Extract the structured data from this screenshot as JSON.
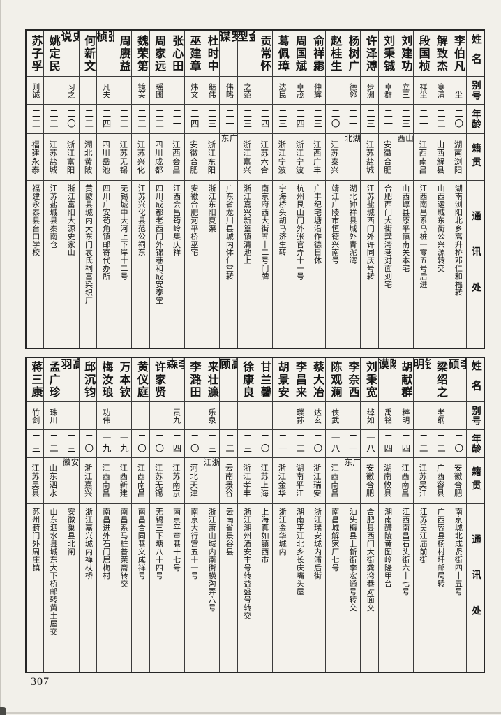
{
  "page": {
    "number": "307"
  },
  "headers": {
    "name": "姓名",
    "alias": "别号",
    "age": "年龄",
    "origin": "籍贯",
    "contact": "通讯处"
  },
  "tables": [
    {
      "people": [
        {
          "name": "李伯凡",
          "alias": "一尘",
          "age": "二〇",
          "origin": "湖南浏阳",
          "contact": "湖南浏阳北乡高升桥邓仁和福转"
        },
        {
          "name": "解致杰",
          "alias": "寒清",
          "age": "二二",
          "origin": "山西解县",
          "contact": "山西运城东街公兴源转交"
        },
        {
          "name": "段国桢",
          "alias": "祥尘",
          "age": "二一",
          "origin": "江西南昌",
          "contact": "江西南昌系马桩一零五号后进"
        },
        {
          "name": "刘建功",
          "alias": "立三",
          "age": "二三",
          "origin": "山西",
          "contact": "山西崞县原平镇南关本宅"
        },
        {
          "name": "刘秉铖",
          "alias": "卓群",
          "age": "二一",
          "origin": "安徽合肥",
          "contact": "合肥西门大街龚湾巷对面刘宅"
        },
        {
          "name": "许泽溥",
          "alias": "步洲",
          "age": "二三",
          "origin": "江苏盐城",
          "contact": "江苏盐城西门外许同庆号转"
        },
        {
          "name": "杨树广",
          "alias": "德邻",
          "age": "二一",
          "origin": "湖北",
          "contact": "湖北钟祥县城外青泥湾"
        },
        {
          "name": "赵桂生",
          "alias": "",
          "age": "二〇",
          "origin": "江苏泰兴",
          "contact": "靖江广陵市恒德兴南号"
        },
        {
          "name": "俞祥霦",
          "alias": "仲辉",
          "age": "二三",
          "origin": "江西广丰",
          "contact": "广丰纪宅塘沿作德日休"
        },
        {
          "name": "周国斌",
          "alias": "卓茂",
          "age": "二四",
          "origin": "浙江宁波",
          "contact": "杭州艮山门外张官弄十一号"
        },
        {
          "name": "葛佩璋",
          "alias": "达民",
          "age": "二三",
          "origin": "浙江宁波",
          "contact": "宁海桥头胡马济生转"
        },
        {
          "name": "贡常怀",
          "alias": "",
          "age": "二四",
          "origin": "江苏六合",
          "contact": "南京府西大街五十二号门牌"
        },
        {
          "name": "金型",
          "alias": "之范",
          "age": "二三",
          "origin": "浙江嘉兴",
          "contact": "浙江嘉兴新篁镇清池上"
        },
        {
          "name": "罗谋",
          "alias": "伟略",
          "age": "二一",
          "origin": "广东",
          "contact": "广东省龙川县城内体仁堂转"
        },
        {
          "name": "杜时中",
          "alias": "继伟",
          "age": "二三",
          "origin": "浙江东阳",
          "contact": "浙江东阳夏渠"
        },
        {
          "name": "巫建章",
          "alias": "炜文",
          "age": "二四",
          "origin": "安徽合肥",
          "contact": "安徽合肥河平桥巫宅"
        },
        {
          "name": "张心田",
          "alias": "",
          "age": "二一",
          "origin": "江西会昌",
          "contact": "江西会昌筠岭集庆祥"
        },
        {
          "name": "周家远",
          "alias": "瑶圃",
          "age": "二二",
          "origin": "四川成都",
          "contact": "四川成都老西门外锦巷和成安泰堂"
        },
        {
          "name": "魏荣第",
          "alias": "镜芙",
          "age": "二二",
          "origin": "江苏兴化",
          "contact": "江苏兴化县范公祠东"
        },
        {
          "name": "周赓益",
          "alias": "",
          "age": "二二",
          "origin": "江苏无锡",
          "contact": "无锡城中大河上下岸十二号"
        },
        {
          "name": "张桢",
          "alias": "凡夫",
          "age": "二四",
          "origin": "四川岳池",
          "contact": "四川广安苟角镇邮寄代办所"
        },
        {
          "name": "何新文",
          "alias": "",
          "age": "二二",
          "origin": "湖北黄陂",
          "contact": "黄陂县城内大东门袁氏祠富染织厂"
        },
        {
          "name": "史说",
          "alias": "习之",
          "age": "二〇",
          "origin": "浙江富阳",
          "contact": "浙江富阳大源史家山"
        },
        {
          "name": "姚定民",
          "alias": "",
          "age": "二二",
          "origin": "江苏盐城",
          "contact": "江苏盐城县秦南仓"
        },
        {
          "name": "苏子孚",
          "alias": "则诚",
          "age": "二二",
          "origin": "福建永泰",
          "contact": "福建永泰县台口学校"
        }
      ]
    },
    {
      "people": [
        {
          "name": "李硕",
          "alias": "",
          "age": "二〇",
          "origin": "安徽合肥",
          "contact": "南京城北成贤街四十五号"
        },
        {
          "name": "梁绍之",
          "alias": "老纲",
          "age": "二二",
          "origin": "广西容县",
          "contact": "广西容县杨村圩邮局转"
        },
        {
          "name": "钮明",
          "alias": "",
          "age": "二二",
          "origin": "江苏吴江",
          "contact": "江苏吴江庙前街"
        },
        {
          "name": "胡献群",
          "alias": "粹明",
          "age": "二四",
          "origin": "江西南昌",
          "contact": "江西南昌石头街六十七号"
        },
        {
          "name": "陈谟",
          "alias": "禹铭",
          "age": "二四",
          "origin": "湖南攸县",
          "contact": "湖南醴陵黄图岭隆甲台"
        },
        {
          "name": "刘秉宽",
          "alias": "绰如",
          "age": "一八",
          "origin": "安徽合肥",
          "contact": "合肥县西门大街龚湾巷对面交"
        },
        {
          "name": "李奈西",
          "alias": "",
          "age": "二一",
          "origin": "广东",
          "contact": "汕头梅县上新街李宏通号转交"
        },
        {
          "name": "陈观澜",
          "alias": "侠武",
          "age": "一八",
          "origin": "江西南昌",
          "contact": "南昌城解家厂七号"
        },
        {
          "name": "蔡大冶",
          "alias": "达玄",
          "age": "二〇",
          "origin": "浙江瑞安",
          "contact": "浙江瑞安城内浦后街"
        },
        {
          "name": "李昌来",
          "alias": "璞荪",
          "age": "二二",
          "origin": "湖南平江",
          "contact": "湖南平江北乡长庆嘴头屋"
        },
        {
          "name": "胡景安",
          "alias": "",
          "age": "二一",
          "origin": "浙江金华",
          "contact": "浙江金华城内"
        },
        {
          "name": "甘兰馨",
          "alias": "",
          "age": "二〇",
          "origin": "江苏上海",
          "contact": "上海真如镇西市"
        },
        {
          "name": "徐康良",
          "alias": "",
          "age": "二三",
          "origin": "浙江孝丰",
          "contact": "浙江湖州酒安丰号转益盛号转交"
        },
        {
          "name": "高顾",
          "alias": "",
          "age": "二二",
          "origin": "云南景谷",
          "contact": "云南省景谷县"
        },
        {
          "name": "来壮濂",
          "alias": "乐泉",
          "age": "二三",
          "origin": "浙江",
          "contact": "浙江萧山城内南街横沟弄六号"
        },
        {
          "name": "李潞田",
          "alias": "",
          "age": "二〇",
          "origin": "河北天津",
          "contact": "南京大行宫五十一号"
        },
        {
          "name": "李森",
          "alias": "贡九",
          "age": "二四",
          "origin": "江苏南京",
          "contact": "南京平章巷十七号"
        },
        {
          "name": "许家贤",
          "alias": "",
          "age": "二〇",
          "origin": "江苏无锡",
          "contact": "无锡三下塘八十四号"
        },
        {
          "name": "黄仪庭",
          "alias": "",
          "age": "二〇",
          "origin": "江西南昌",
          "contact": "南昌合同巷义成祥号"
        },
        {
          "name": "万本钦",
          "alias": "",
          "age": "一九",
          "origin": "江西新建",
          "contact": "南昌系马桩普荣斋转交"
        },
        {
          "name": "梅汝琅",
          "alias": "功伟",
          "age": "一九",
          "origin": "江西南昌",
          "contact": "南昌进外石门居梅村"
        },
        {
          "name": "邱沉钧",
          "alias": "",
          "age": "二〇",
          "origin": "浙江嘉兴",
          "contact": "浙江嘉兴城内禅杖桥"
        },
        {
          "name": "高羽",
          "alias": "",
          "age": "二三",
          "origin": "安徽",
          "contact": "安徽巢县北闸"
        },
        {
          "name": "孟广珍",
          "alias": "珠川",
          "age": "二二",
          "origin": "山东泗水",
          "contact": "山东泗水县城东大下桥邮转黄土屋交"
        },
        {
          "name": "蒋三康",
          "alias": "竹剑",
          "age": "二三",
          "origin": "江苏吴县",
          "contact": "苏州葑门外周庄镇"
        }
      ]
    }
  ]
}
